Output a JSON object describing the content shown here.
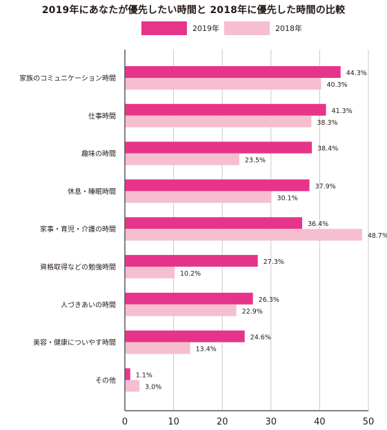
{
  "chart_data": {
    "type": "bar",
    "orientation": "horizontal",
    "title": "2019年にあなたが優先したい時間と 2018年に優先した時間の比較",
    "categories": [
      "家族のコミュニケーション時間",
      "仕事時間",
      "趣味の時間",
      "休息・睡眠時間",
      "家事・育児・介護の時間",
      "資格取得などの勉強時間",
      "人づきあいの時間",
      "美容・健康についやす時間",
      "その他"
    ],
    "series": [
      {
        "name": "2019年",
        "color": "#e6348a",
        "values": [
          44.3,
          41.3,
          38.4,
          37.9,
          36.4,
          27.3,
          26.3,
          24.6,
          1.1
        ],
        "labels": [
          "44.3%",
          "41.3%",
          "38.4%",
          "37.9%",
          "36.4%",
          "27.3%",
          "26.3%",
          "24.6%",
          "1.1%"
        ]
      },
      {
        "name": "2018年",
        "color": "#f5bfcf",
        "values": [
          40.3,
          38.3,
          23.5,
          30.1,
          48.7,
          10.2,
          22.9,
          13.4,
          3.0
        ],
        "labels": [
          "40.3%",
          "38.3%",
          "23.5%",
          "30.1%",
          "48.7%",
          "10.2%",
          "22.9%",
          "13.4%",
          "3.0%"
        ]
      }
    ],
    "xlim": [
      0,
      50
    ],
    "xticks": [
      "0",
      "10",
      "20",
      "30",
      "40",
      "50"
    ],
    "grid": true,
    "legend_position": "top-center",
    "grid_color": "#c9c9c9",
    "axis_color": "#595757"
  }
}
